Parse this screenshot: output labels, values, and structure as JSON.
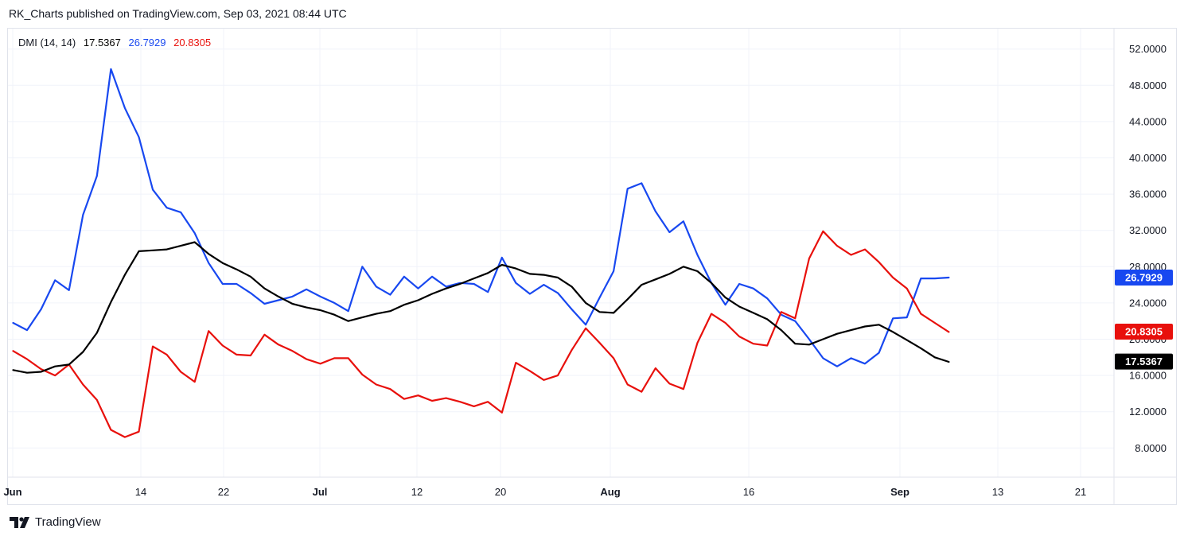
{
  "header": {
    "text": "RK_Charts published on TradingView.com, Sep 03, 2021 08:44 UTC"
  },
  "legend": {
    "name": "DMI (14, 14)",
    "adx": "17.5367",
    "plus_di": "26.7929",
    "minus_di": "20.8305"
  },
  "footer": {
    "brand": "TradingView"
  },
  "colors": {
    "adx": "#000000",
    "plus_di": "#1848f0",
    "minus_di": "#e8100c",
    "grid": "#f0f3fa",
    "border": "#e0e3eb"
  },
  "chart_data": {
    "type": "line",
    "ylim": [
      5.5,
      54
    ],
    "y_ticks": [
      "52.0000",
      "48.0000",
      "44.0000",
      "40.0000",
      "36.0000",
      "32.0000",
      "28.0000",
      "24.0000",
      "20.0000",
      "16.0000",
      "12.0000",
      "8.0000"
    ],
    "x_ticks": [
      {
        "label": "Jun",
        "bold": true
      },
      {
        "label": "14",
        "bold": false
      },
      {
        "label": "22",
        "bold": false
      },
      {
        "label": "Jul",
        "bold": true
      },
      {
        "label": "12",
        "bold": false
      },
      {
        "label": "20",
        "bold": false
      },
      {
        "label": "Aug",
        "bold": true
      },
      {
        "label": "16",
        "bold": false
      },
      {
        "label": "Sep",
        "bold": true
      },
      {
        "label": "13",
        "bold": false
      },
      {
        "label": "21",
        "bold": false
      }
    ],
    "series": [
      {
        "key": "plus_di",
        "values": [
          21.8,
          21.0,
          23.3,
          26.5,
          25.4,
          33.7,
          38.0,
          49.8,
          45.5,
          42.3,
          36.5,
          34.5,
          34.0,
          31.7,
          28.4,
          26.1,
          26.1,
          25.1,
          23.9,
          24.3,
          24.7,
          25.5,
          24.7,
          24.0,
          23.1,
          28.0,
          25.8,
          24.9,
          26.9,
          25.6,
          26.9,
          25.8,
          26.2,
          26.1,
          25.2,
          29.0,
          26.2,
          25.0,
          26.0,
          25.1,
          23.3,
          21.6,
          24.6,
          27.5,
          36.6,
          37.2,
          34.1,
          31.8,
          33.0,
          29.3,
          26.2,
          23.8,
          26.1,
          25.6,
          24.5,
          22.7,
          22.0,
          20.0,
          17.9,
          17.0,
          17.9,
          17.3,
          18.5,
          22.3,
          22.4,
          26.7,
          26.7,
          26.8
        ],
        "start_index": 0
      },
      {
        "key": "minus_di",
        "values": [
          18.7,
          17.8,
          16.7,
          16.0,
          17.2,
          15.0,
          13.3,
          10.0,
          9.2,
          9.8,
          19.2,
          18.3,
          16.4,
          15.3,
          20.9,
          19.3,
          18.3,
          18.2,
          20.5,
          19.4,
          18.7,
          17.8,
          17.3,
          17.9,
          17.9,
          16.1,
          15.0,
          14.5,
          13.4,
          13.8,
          13.2,
          13.5,
          13.1,
          12.6,
          13.1,
          11.9,
          17.4,
          16.5,
          15.5,
          16.0,
          18.8,
          21.2,
          19.6,
          17.9,
          15.0,
          14.2,
          16.8,
          15.1,
          14.5,
          19.6,
          22.8,
          21.8,
          20.3,
          19.5,
          19.3,
          23.0,
          22.3,
          28.9,
          31.9,
          30.3,
          29.3,
          29.9,
          28.5,
          26.8,
          25.6,
          22.8,
          21.8,
          20.8
        ],
        "start_index": 0
      },
      {
        "key": "adx",
        "values": [
          16.6,
          16.3,
          16.4,
          17.0,
          17.2,
          18.6,
          20.7,
          24.1,
          27.1,
          29.7,
          29.8,
          29.9,
          30.3,
          30.7,
          29.4,
          28.4,
          27.7,
          26.9,
          25.6,
          24.7,
          23.9,
          23.5,
          23.2,
          22.7,
          22.0,
          22.4,
          22.8,
          23.1,
          23.8,
          24.3,
          25.0,
          25.6,
          26.1,
          26.7,
          27.3,
          28.2,
          27.8,
          27.2,
          27.1,
          26.8,
          25.8,
          24.0,
          23.0,
          22.9,
          24.4,
          26.0,
          26.6,
          27.2,
          28.0,
          27.5,
          26.2,
          24.6,
          23.6,
          22.9,
          22.2,
          21.0,
          19.5,
          19.4,
          20.0,
          20.6,
          21.0,
          21.4,
          21.6,
          20.8,
          19.9,
          19.0,
          18.0,
          17.5
        ],
        "start_index": 0
      }
    ]
  }
}
